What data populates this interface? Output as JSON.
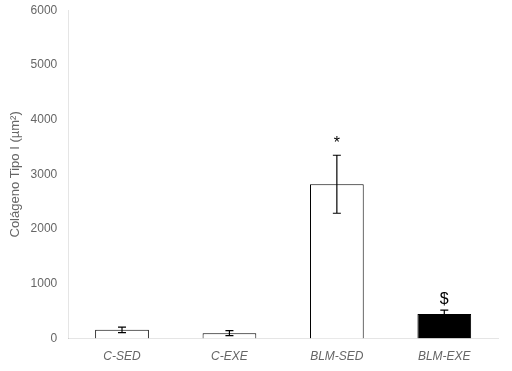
{
  "chart_data": {
    "type": "bar",
    "categories": [
      "C-SED",
      "C-EXE",
      "BLM-SED",
      "BLM-EXE"
    ],
    "values": [
      160,
      100,
      2820,
      450
    ],
    "errors": [
      50,
      45,
      530,
      70
    ],
    "colors": [
      "white",
      "white",
      "white",
      "black"
    ],
    "annotations": [
      {
        "category": "BLM-SED",
        "text": "*",
        "y": 3420
      },
      {
        "category": "BLM-EXE",
        "text": "$",
        "y": 560
      }
    ],
    "ylabel": "Colágeno Tipo I (µm²)",
    "ylim": [
      0,
      6000
    ],
    "yticks": [
      0,
      1000,
      2000,
      3000,
      4000,
      5000,
      6000
    ],
    "grid": false
  }
}
